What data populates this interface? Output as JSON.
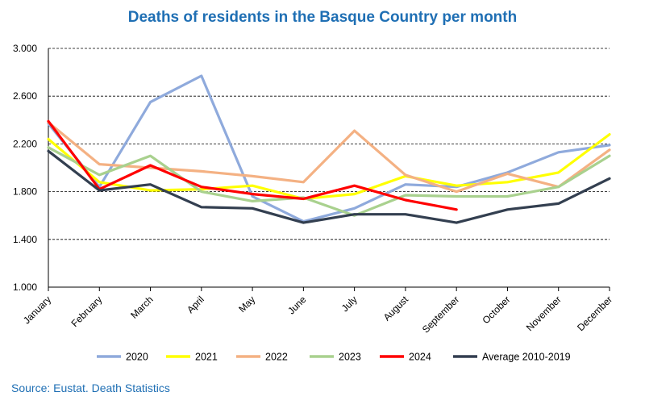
{
  "chart_data": {
    "type": "line",
    "title": "Deaths of residents in the Basque Country per month",
    "xlabel": "",
    "ylabel": "",
    "categories": [
      "January",
      "February",
      "March",
      "April",
      "May",
      "June",
      "July",
      "August",
      "September",
      "October",
      "November",
      "December"
    ],
    "ylim": [
      1000,
      3000
    ],
    "yticks": [
      1000,
      1400,
      1800,
      2200,
      2600,
      3000
    ],
    "ytick_labels": [
      "1.000",
      "1.400",
      "1.800",
      "2.200",
      "2.600",
      "3.000"
    ],
    "grid": "horizontal-dashed",
    "legend_position": "bottom",
    "series": [
      {
        "name": "2020",
        "color": "#8faadc",
        "values": [
          2370,
          1840,
          2550,
          2770,
          1760,
          1550,
          1660,
          1860,
          1840,
          1960,
          2130,
          2190
        ]
      },
      {
        "name": "2021",
        "color": "#ffff00",
        "values": [
          2240,
          1880,
          1810,
          1820,
          1850,
          1740,
          1780,
          1930,
          1850,
          1880,
          1960,
          2280
        ]
      },
      {
        "name": "2022",
        "color": "#f4b183",
        "values": [
          2380,
          2030,
          2000,
          1970,
          1930,
          1880,
          2310,
          1940,
          1800,
          1950,
          1840,
          2150
        ]
      },
      {
        "name": "2023",
        "color": "#a9d18e",
        "values": [
          2170,
          1940,
          2100,
          1800,
          1720,
          1750,
          1600,
          1770,
          1760,
          1760,
          1840,
          2100
        ]
      },
      {
        "name": "2024",
        "color": "#ff0000",
        "values": [
          2390,
          1820,
          2020,
          1840,
          1780,
          1740,
          1850,
          1730,
          1650,
          null,
          null,
          null
        ]
      },
      {
        "name": "Average 2010-2019",
        "color": "#333f50",
        "values": [
          2140,
          1810,
          1860,
          1670,
          1660,
          1540,
          1610,
          1610,
          1540,
          1650,
          1700,
          1910
        ]
      }
    ]
  },
  "source": "Source: Eustat. Death Statistics"
}
